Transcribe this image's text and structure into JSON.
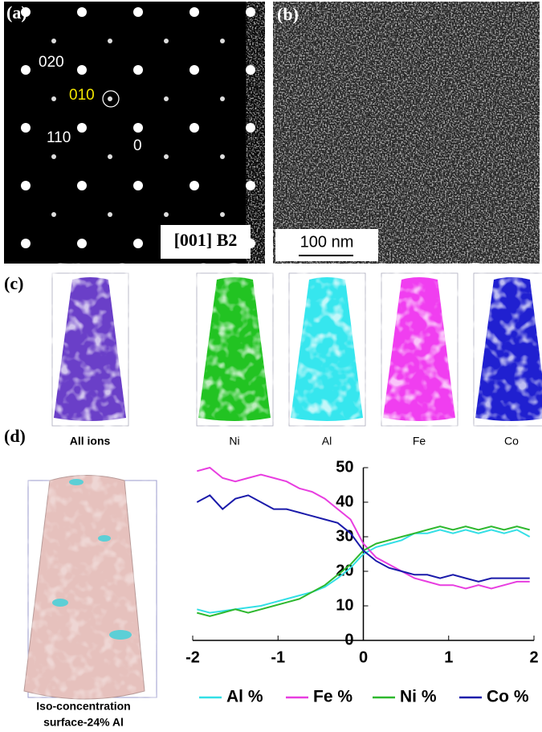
{
  "panels": {
    "a": {
      "label": "(a)",
      "spots": [
        "020",
        "010",
        "110",
        "0"
      ],
      "zone_axis": "[001] B2"
    },
    "b": {
      "label": "(b)",
      "scale_bar": "100 nm"
    },
    "c": {
      "label": "(c)",
      "maps": [
        "All ions",
        "Ni",
        "Al",
        "Fe",
        "Co"
      ]
    },
    "d": {
      "label": "(d)",
      "caption": [
        "Iso-concentration",
        "surface-24% Al"
      ]
    }
  },
  "chart_data": {
    "type": "line",
    "x": [
      -1.95,
      -1.8,
      -1.65,
      -1.5,
      -1.35,
      -1.2,
      -1.05,
      -0.9,
      -0.75,
      -0.6,
      -0.45,
      -0.3,
      -0.15,
      0,
      0.15,
      0.3,
      0.45,
      0.6,
      0.75,
      0.9,
      1.05,
      1.2,
      1.35,
      1.5,
      1.65,
      1.8,
      1.95
    ],
    "series": [
      {
        "name": "Al %",
        "color": "#33dfe6",
        "values": [
          9,
          8,
          8.5,
          9,
          9.5,
          10,
          11,
          12,
          13,
          14,
          15.5,
          18,
          21,
          25,
          27,
          28,
          29,
          31,
          31,
          32,
          31,
          32,
          31,
          32,
          31,
          32,
          30
        ]
      },
      {
        "name": "Fe %",
        "color": "#e83ee0",
        "values": [
          49,
          50,
          47,
          46,
          47,
          48,
          47,
          46,
          44,
          43,
          41,
          38,
          35,
          28,
          24,
          22,
          20,
          18,
          17,
          16,
          16,
          15,
          16,
          15,
          16,
          17,
          17
        ]
      },
      {
        "name": "Ni %",
        "color": "#2eb82e",
        "values": [
          8,
          7,
          8,
          9,
          8,
          9,
          10,
          11,
          12,
          14,
          16,
          19,
          22,
          26,
          28,
          29,
          30,
          31,
          32,
          33,
          32,
          33,
          32,
          33,
          32,
          33,
          32
        ]
      },
      {
        "name": "Co %",
        "color": "#1a1aaa",
        "values": [
          40,
          42,
          38,
          41,
          42,
          40,
          38,
          38,
          37,
          36,
          35,
          34,
          31,
          26,
          23,
          21,
          20,
          19,
          19,
          18,
          19,
          18,
          17,
          18,
          18,
          18,
          18
        ]
      }
    ],
    "xlim": [
      -2,
      2
    ],
    "xticks": [
      -2,
      -1,
      0,
      1,
      2
    ],
    "ylim": [
      0,
      50
    ],
    "yticks": [
      0,
      10,
      20,
      30,
      40,
      50
    ]
  }
}
